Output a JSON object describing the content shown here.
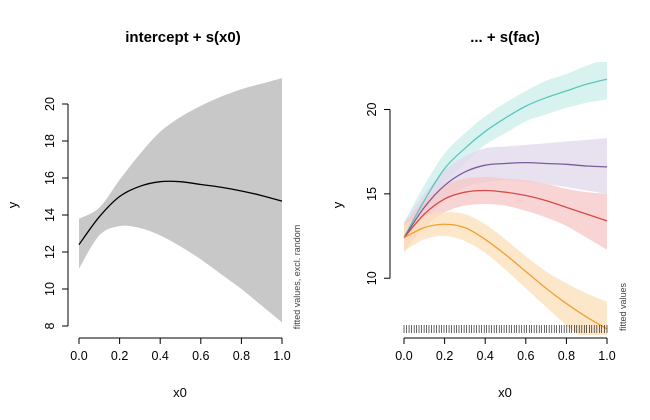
{
  "chart_data": [
    {
      "type": "line",
      "title": "intercept + s(x0)",
      "xlabel": "x0",
      "ylabel": "y",
      "side_note": "fitted values, excl. random",
      "xlim": [
        0,
        1
      ],
      "ylim": [
        8,
        20
      ],
      "xticks": [
        "0.0",
        "0.2",
        "0.4",
        "0.6",
        "0.8",
        "1.0"
      ],
      "yticks": [
        "8",
        "10",
        "12",
        "14",
        "16",
        "18",
        "20"
      ],
      "colors": {
        "band": "#c8c8c8",
        "line": "#000000"
      },
      "series": [
        {
          "x": [
            0.0,
            0.1,
            0.2,
            0.3,
            0.4,
            0.5,
            0.6,
            0.7,
            0.8,
            0.9,
            1.0
          ],
          "y": [
            12.4,
            13.9,
            15.0,
            15.55,
            15.8,
            15.8,
            15.65,
            15.5,
            15.3,
            15.05,
            14.75
          ],
          "lower": [
            11.1,
            12.9,
            13.4,
            13.3,
            12.9,
            12.3,
            11.6,
            10.8,
            10.0,
            9.1,
            8.2
          ],
          "upper": [
            13.8,
            14.4,
            15.9,
            17.3,
            18.5,
            19.3,
            19.9,
            20.4,
            20.8,
            21.1,
            21.4
          ]
        }
      ]
    },
    {
      "type": "line",
      "title": "... + s(fac)",
      "xlabel": "x0",
      "ylabel": "y",
      "side_note": "fitted values",
      "xlim": [
        0,
        1
      ],
      "ylim": [
        6.5,
        22.5
      ],
      "xticks": [
        "0.0",
        "0.2",
        "0.4",
        "0.6",
        "0.8",
        "1.0"
      ],
      "yticks": [
        "10",
        "15",
        "20"
      ],
      "rug": [
        0.0,
        0.012,
        0.025,
        0.037,
        0.05,
        0.062,
        0.074,
        0.086,
        0.099,
        0.111,
        0.123,
        0.136,
        0.148,
        0.16,
        0.173,
        0.185,
        0.197,
        0.21,
        0.222,
        0.234,
        0.247,
        0.259,
        0.271,
        0.284,
        0.296,
        0.308,
        0.321,
        0.333,
        0.345,
        0.358,
        0.37,
        0.382,
        0.395,
        0.407,
        0.419,
        0.432,
        0.444,
        0.456,
        0.469,
        0.481,
        0.493,
        0.506,
        0.518,
        0.53,
        0.543,
        0.555,
        0.567,
        0.58,
        0.592,
        0.604,
        0.617,
        0.629,
        0.641,
        0.654,
        0.666,
        0.678,
        0.691,
        0.703,
        0.715,
        0.728,
        0.74,
        0.752,
        0.765,
        0.777,
        0.789,
        0.802,
        0.814,
        0.826,
        0.839,
        0.851,
        0.863,
        0.876,
        0.888,
        0.9,
        0.913,
        0.925,
        0.937,
        0.95,
        0.962,
        0.974,
        0.987,
        1.0
      ],
      "series": [
        {
          "color": "#5cc6bd",
          "band_color": "#cdeeeb",
          "x": [
            0.0,
            0.1,
            0.2,
            0.3,
            0.4,
            0.5,
            0.6,
            0.7,
            0.8,
            0.9,
            1.0
          ],
          "y": [
            12.4,
            14.6,
            16.5,
            17.7,
            18.7,
            19.5,
            20.2,
            20.7,
            21.1,
            21.5,
            21.8
          ],
          "lower": [
            11.5,
            13.8,
            15.6,
            16.8,
            17.9,
            18.6,
            19.3,
            19.7,
            20.1,
            20.4,
            20.6
          ],
          "upper": [
            13.3,
            15.5,
            17.4,
            18.6,
            19.6,
            20.4,
            21.1,
            21.7,
            22.1,
            22.6,
            23.0
          ]
        },
        {
          "color": "#7a5c9b",
          "band_color": "#e1d8ec",
          "x": [
            0.0,
            0.1,
            0.2,
            0.3,
            0.4,
            0.5,
            0.6,
            0.7,
            0.8,
            0.9,
            1.0
          ],
          "y": [
            12.4,
            14.2,
            15.5,
            16.3,
            16.7,
            16.8,
            16.85,
            16.8,
            16.75,
            16.65,
            16.6
          ],
          "lower": [
            11.5,
            13.4,
            14.6,
            15.4,
            15.7,
            15.8,
            15.7,
            15.6,
            15.4,
            15.2,
            15.0
          ],
          "upper": [
            13.3,
            15.0,
            16.4,
            17.2,
            17.7,
            17.8,
            17.9,
            18.0,
            18.1,
            18.2,
            18.3
          ]
        },
        {
          "color": "#d64a4a",
          "band_color": "#f6c8c8",
          "x": [
            0.0,
            0.1,
            0.2,
            0.3,
            0.4,
            0.5,
            0.6,
            0.7,
            0.8,
            0.9,
            1.0
          ],
          "y": [
            12.4,
            13.8,
            14.7,
            15.1,
            15.2,
            15.1,
            14.9,
            14.6,
            14.2,
            13.8,
            13.4
          ],
          "lower": [
            11.6,
            13.0,
            13.9,
            14.3,
            14.4,
            14.3,
            14.0,
            13.6,
            13.1,
            12.4,
            11.7
          ],
          "upper": [
            13.2,
            14.6,
            15.5,
            15.9,
            16.0,
            15.9,
            15.8,
            15.6,
            15.3,
            15.1,
            15.0
          ]
        },
        {
          "color": "#f0a032",
          "band_color": "#fbe0bd",
          "x": [
            0.0,
            0.1,
            0.2,
            0.3,
            0.4,
            0.5,
            0.6,
            0.7,
            0.8,
            0.9,
            1.0
          ],
          "y": [
            12.4,
            13.0,
            13.2,
            13.0,
            12.3,
            11.4,
            10.4,
            9.4,
            8.5,
            7.7,
            7.0
          ],
          "lower": [
            11.6,
            12.3,
            12.5,
            12.2,
            11.5,
            10.5,
            9.4,
            8.3,
            7.2,
            6.3,
            5.5
          ],
          "upper": [
            13.2,
            13.7,
            13.9,
            13.8,
            13.2,
            12.3,
            11.3,
            10.4,
            9.7,
            9.1,
            8.6
          ]
        }
      ]
    }
  ]
}
